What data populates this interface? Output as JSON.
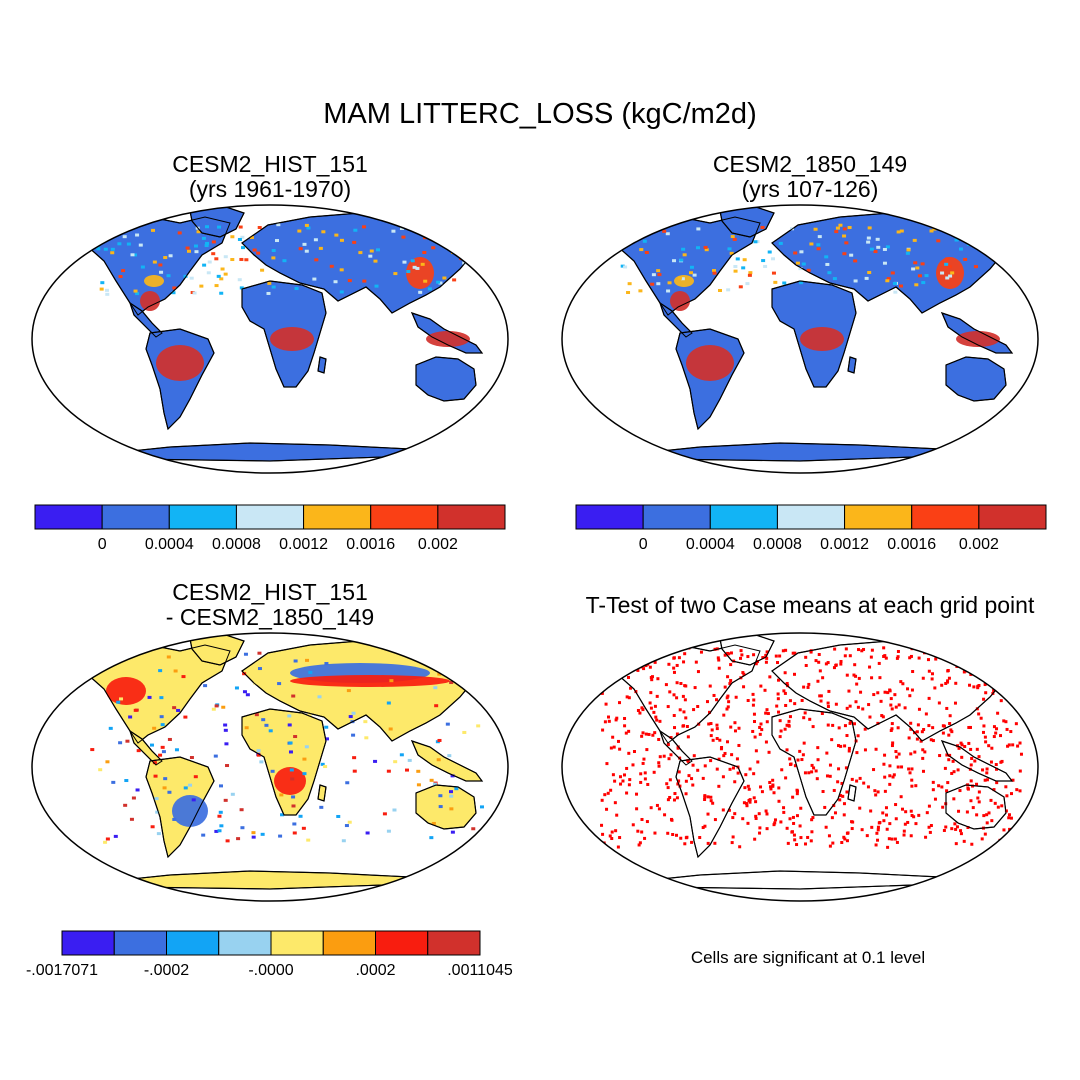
{
  "title": "MAM LITTERC_LOSS (kgC/m2d)",
  "panels": {
    "top_left": {
      "title_line1": "CESM2_HIST_151",
      "title_line2": "(yrs 1961-1970)"
    },
    "top_right": {
      "title_line1": "CESM2_1850_149",
      "title_line2": "(yrs 107-126)"
    },
    "bottom_left": {
      "title_line1": "CESM2_HIST_151",
      "title_line2": "- CESM2_1850_149"
    },
    "bottom_right": {
      "title_line1": "T-Test of two Case means at each grid point",
      "note": "Cells are significant at 0.1 level"
    }
  },
  "colorbars": {
    "mean": {
      "colors": [
        "#3a1ef2",
        "#3c6fe0",
        "#12b4f5",
        "#c9e7f5",
        "#fbb61a",
        "#fa4015",
        "#d1312c"
      ],
      "ticks": [
        "0",
        "0.0004",
        "0.0008",
        "0.0012",
        "0.0016",
        "0.002"
      ]
    },
    "difference": {
      "colors": [
        "#3a1ef2",
        "#3c6fe0",
        "#12a4f5",
        "#98d2f0",
        "#fde96a",
        "#fb9d10",
        "#f81d0f",
        "#d1312c"
      ],
      "ticks": [
        "-.0017071",
        "-.0002",
        "-.0000",
        ".0002",
        ".0011045"
      ]
    }
  },
  "map_colors": {
    "ocean": "#ffffff",
    "land_mean_base": "#3c6fe0",
    "antarctica_diff": "#fde96a",
    "significant": "#ff0000",
    "not_significant": "#ffffff"
  }
}
